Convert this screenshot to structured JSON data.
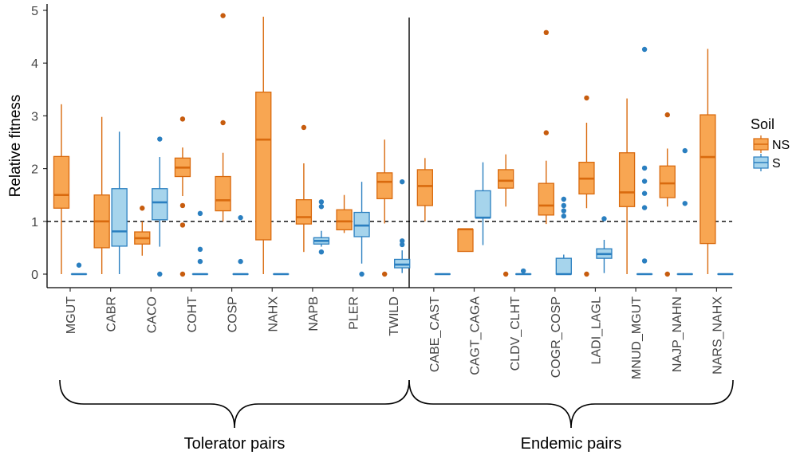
{
  "chart_data": {
    "type": "box",
    "ylabel": "Relative fitness",
    "ylim": [
      0,
      5
    ],
    "yticks": [
      0,
      1,
      2,
      3,
      4,
      5
    ],
    "reference_line": 1,
    "categories": [
      "MGUT",
      "CABR",
      "CACO",
      "COHT",
      "COSP",
      "NAHX",
      "NAPB",
      "PLER",
      "TWILD",
      "CABE_CAST",
      "CAGT_CAGA",
      "CLDV_CLHT",
      "COGR_COSP",
      "LADI_LAGL",
      "MNUD_MGUT",
      "NAJP_NAHN",
      "NARS_NAHX"
    ],
    "groups": [
      {
        "label": "Tolerator pairs",
        "categories": [
          "MGUT",
          "CABR",
          "CACO",
          "COHT",
          "COSP",
          "NAHX",
          "NAPB",
          "PLER",
          "TWILD"
        ]
      },
      {
        "label": "Endemic pairs",
        "categories": [
          "CABE_CAST",
          "CAGT_CAGA",
          "CLDV_CLHT",
          "COGR_COSP",
          "LADI_LAGL",
          "MNUD_MGUT",
          "NAJP_NAHN",
          "NARS_NAHX"
        ]
      }
    ],
    "legend": {
      "title": "Soil",
      "position": "right"
    },
    "series": [
      {
        "name": "NS",
        "color": "#F8A652",
        "stroke": "#D96A0E",
        "outlier_color": "#C75C0E",
        "boxes": [
          {
            "min": 0,
            "q1": 1.25,
            "median": 1.5,
            "q3": 2.23,
            "max": 3.22,
            "outliers": []
          },
          {
            "min": 0,
            "q1": 0.5,
            "median": 1.0,
            "q3": 1.5,
            "max": 2.98,
            "outliers": []
          },
          {
            "min": 0.35,
            "q1": 0.57,
            "median": 0.68,
            "q3": 0.8,
            "max": 1.0,
            "outliers": [
              1.25
            ]
          },
          {
            "min": 1.48,
            "q1": 1.85,
            "median": 2.02,
            "q3": 2.2,
            "max": 2.4,
            "outliers": [
              2.94,
              1.3,
              0.93,
              0.0
            ]
          },
          {
            "min": 1.0,
            "q1": 1.2,
            "median": 1.4,
            "q3": 1.85,
            "max": 2.3,
            "outliers": [
              4.9,
              2.87
            ]
          },
          {
            "min": 0,
            "q1": 0.65,
            "median": 2.55,
            "q3": 3.45,
            "max": 4.88,
            "outliers": []
          },
          {
            "min": 0.42,
            "q1": 0.95,
            "median": 1.08,
            "q3": 1.41,
            "max": 2.1,
            "outliers": [
              2.78
            ]
          },
          {
            "min": 0.78,
            "q1": 0.84,
            "median": 1.0,
            "q3": 1.22,
            "max": 1.5,
            "outliers": []
          },
          {
            "min": 0.96,
            "q1": 1.43,
            "median": 1.75,
            "q3": 1.92,
            "max": 2.55,
            "outliers": [
              0.0
            ]
          },
          {
            "min": 1.0,
            "q1": 1.3,
            "median": 1.67,
            "q3": 1.98,
            "max": 2.2,
            "outliers": []
          },
          {
            "min": 0.43,
            "q1": 0.43,
            "median": 0.85,
            "q3": 0.85,
            "max": 0.85,
            "outliers": []
          },
          {
            "min": 1.28,
            "q1": 1.63,
            "median": 1.77,
            "q3": 1.98,
            "max": 2.27,
            "outliers": [
              0.0
            ]
          },
          {
            "min": 0.95,
            "q1": 1.12,
            "median": 1.3,
            "q3": 1.72,
            "max": 2.15,
            "outliers": [
              4.58,
              2.68
            ]
          },
          {
            "min": 1.25,
            "q1": 1.52,
            "median": 1.81,
            "q3": 2.12,
            "max": 2.87,
            "outliers": [
              3.34,
              0.0
            ]
          },
          {
            "min": 0,
            "q1": 1.28,
            "median": 1.55,
            "q3": 2.3,
            "max": 3.33,
            "outliers": []
          },
          {
            "min": 1.28,
            "q1": 1.45,
            "median": 1.72,
            "q3": 2.05,
            "max": 2.38,
            "outliers": [
              3.02,
              0.0
            ]
          },
          {
            "min": 0,
            "q1": 0.58,
            "median": 2.22,
            "q3": 3.02,
            "max": 4.27,
            "outliers": []
          }
        ]
      },
      {
        "name": "S",
        "color": "#A6D4EC",
        "stroke": "#2A7FC0",
        "outlier_color": "#2A7FC0",
        "boxes": [
          {
            "min": 0,
            "q1": 0,
            "median": 0,
            "q3": 0,
            "max": 0,
            "outliers": [
              0.17
            ]
          },
          {
            "min": 0,
            "q1": 0.53,
            "median": 0.81,
            "q3": 1.62,
            "max": 2.7,
            "outliers": []
          },
          {
            "min": 0.52,
            "q1": 1.03,
            "median": 1.36,
            "q3": 1.62,
            "max": 2.22,
            "outliers": [
              2.56,
              0.0
            ]
          },
          {
            "min": 0,
            "q1": 0,
            "median": 0,
            "q3": 0,
            "max": 0,
            "outliers": [
              1.15,
              0.47,
              0.24
            ]
          },
          {
            "min": 0,
            "q1": 0,
            "median": 0,
            "q3": 0,
            "max": 0,
            "outliers": [
              1.07,
              0.24
            ]
          },
          {
            "min": 0,
            "q1": 0,
            "median": 0,
            "q3": 0,
            "max": 0,
            "outliers": []
          },
          {
            "min": 0.52,
            "q1": 0.57,
            "median": 0.63,
            "q3": 0.69,
            "max": 0.82,
            "outliers": [
              1.37,
              1.28,
              0.42
            ]
          },
          {
            "min": 0.2,
            "q1": 0.71,
            "median": 0.92,
            "q3": 1.17,
            "max": 1.75,
            "outliers": [
              0.0
            ]
          },
          {
            "min": 0.02,
            "q1": 0.12,
            "median": 0.18,
            "q3": 0.28,
            "max": 0.45,
            "outliers": [
              1.75,
              0.63,
              0.56
            ]
          },
          {
            "min": 0,
            "q1": 0,
            "median": 0,
            "q3": 0,
            "max": 0,
            "outliers": []
          },
          {
            "min": 0.55,
            "q1": 1.07,
            "median": 1.07,
            "q3": 1.58,
            "max": 2.12,
            "outliers": []
          },
          {
            "min": 0,
            "q1": 0,
            "median": 0,
            "q3": 0,
            "max": 0,
            "outliers": [
              0.06
            ]
          },
          {
            "min": 0,
            "q1": 0,
            "median": 0,
            "q3": 0.3,
            "max": 0.37,
            "outliers": [
              1.42,
              1.3,
              1.2,
              1.1
            ]
          },
          {
            "min": 0.02,
            "q1": 0.3,
            "median": 0.38,
            "q3": 0.48,
            "max": 0.65,
            "outliers": [
              1.05
            ]
          },
          {
            "min": 0,
            "q1": 0,
            "median": 0,
            "q3": 0,
            "max": 0,
            "outliers": [
              4.26,
              2.01,
              1.76,
              1.53,
              1.26,
              0.25
            ]
          },
          {
            "min": 0,
            "q1": 0,
            "median": 0,
            "q3": 0,
            "max": 0,
            "outliers": [
              2.34,
              1.34
            ]
          },
          {
            "min": 0,
            "q1": 0,
            "median": 0,
            "q3": 0,
            "max": 0,
            "outliers": []
          }
        ]
      }
    ]
  }
}
